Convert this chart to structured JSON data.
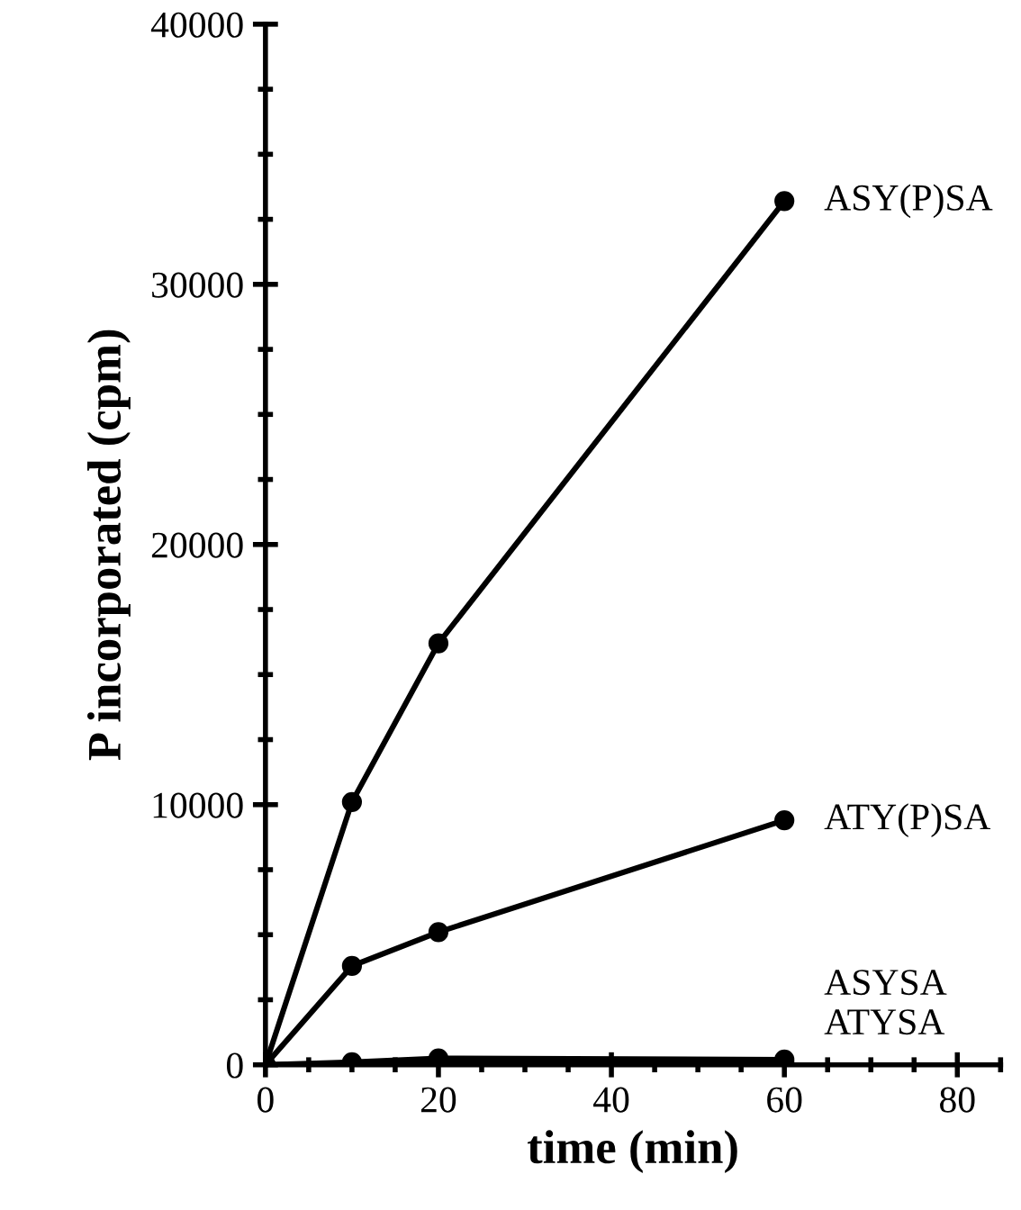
{
  "chart_data": {
    "type": "line",
    "xlabel": "time (min)",
    "ylabel": "P incorporated (cpm)",
    "x": [
      0,
      10,
      20,
      60
    ],
    "series": [
      {
        "name": "ASY(P)SA",
        "color": "#000000",
        "values": [
          0,
          10100,
          16200,
          33200
        ]
      },
      {
        "name": "ATY(P)SA",
        "color": "#000000",
        "values": [
          0,
          3800,
          5100,
          9400
        ]
      },
      {
        "name": "ASYSA",
        "color": "#000000",
        "values": [
          0,
          100,
          250,
          200
        ]
      },
      {
        "name": "ATYSA",
        "color": "#000000",
        "values": [
          0,
          50,
          150,
          100
        ]
      }
    ],
    "xlim": [
      0,
      85
    ],
    "xticks": [
      0,
      20,
      40,
      60,
      80
    ],
    "ylim": [
      0,
      40000
    ],
    "yticks": [
      0,
      10000,
      20000,
      30000,
      40000
    ],
    "marker": "circle",
    "line_style": "solid",
    "grid": false,
    "legend": false
  }
}
